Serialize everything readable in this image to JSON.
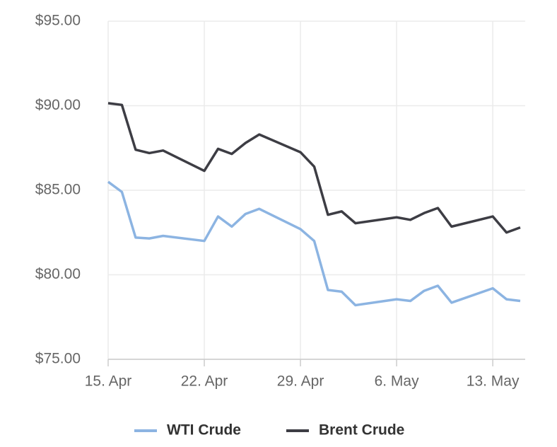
{
  "chart_data": {
    "type": "line",
    "x": [
      "15. Apr",
      "16. Apr",
      "17. Apr",
      "18. Apr",
      "19. Apr",
      "22. Apr",
      "23. Apr",
      "24. Apr",
      "25. Apr",
      "26. Apr",
      "29. Apr",
      "30. Apr",
      "1. May",
      "2. May",
      "3. May",
      "6. May",
      "7. May",
      "8. May",
      "9. May",
      "10. May",
      "13. May",
      "14. May",
      "15. May"
    ],
    "series": [
      {
        "name": "WTI Crude",
        "color": "#8cb4e2",
        "values": [
          85.5,
          84.9,
          82.2,
          82.15,
          82.3,
          82.0,
          83.45,
          82.85,
          83.6,
          83.9,
          82.7,
          82.0,
          79.1,
          79.0,
          78.2,
          78.55,
          78.45,
          79.05,
          79.35,
          78.35,
          79.2,
          78.55,
          78.45
        ]
      },
      {
        "name": "Brent Crude",
        "color": "#3d3d44",
        "values": [
          90.15,
          90.05,
          87.4,
          87.2,
          87.35,
          86.15,
          87.45,
          87.15,
          87.8,
          88.3,
          87.25,
          86.4,
          83.55,
          83.75,
          83.05,
          83.4,
          83.25,
          83.65,
          83.95,
          82.85,
          83.45,
          82.5,
          82.8
        ]
      }
    ],
    "xlim": [
      "15. Apr",
      "15. May"
    ],
    "xticks": [
      "15. Apr",
      "22. Apr",
      "29. Apr",
      "6. May",
      "13. May"
    ],
    "ylim": [
      75,
      95
    ],
    "yticks": [
      {
        "value": 75,
        "label": "$75.00"
      },
      {
        "value": 80,
        "label": "$80.00"
      },
      {
        "value": 85,
        "label": "$85.00"
      },
      {
        "value": 90,
        "label": "$90.00"
      },
      {
        "value": 95,
        "label": "$95.00"
      }
    ],
    "grid": true,
    "legend": "bottom"
  }
}
